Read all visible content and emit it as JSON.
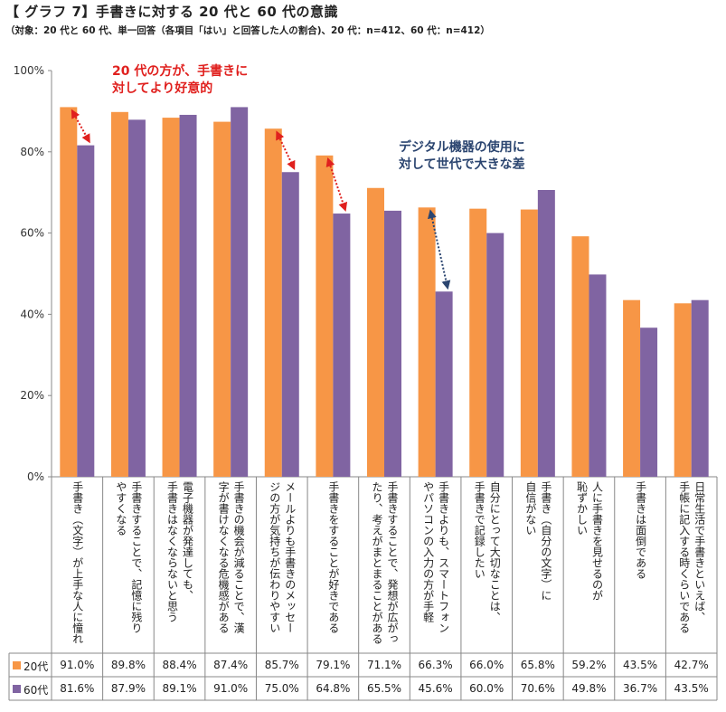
{
  "title": "【 グラフ 7】手書きに対する 20 代と 60 代の意識",
  "subtitle": "（対象：20 代と 60 代、単一回答（各項目「はい」と回答した人の割合)、20 代：n=412、60 代：n=412）",
  "annotations": {
    "red": [
      "20 代の方が、手書きに",
      "対してより好意的"
    ],
    "blue": [
      "デジタル機器の使用に",
      "対して世代で大きな差"
    ]
  },
  "colors": {
    "20代": "#f79646",
    "60代": "#8064a2",
    "red": "#e0201e",
    "blue": "#2b4570"
  },
  "chart_data": {
    "type": "bar",
    "ylim": [
      0,
      100
    ],
    "yticks": [
      "0%",
      "20%",
      "40%",
      "60%",
      "80%",
      "100%"
    ],
    "categories": [
      [
        "手書き（文字）が上手な人に憧れる"
      ],
      [
        "手書きすることで、記憶に残り",
        "やすくなる"
      ],
      [
        "電子機器が発達しても、",
        "手書きはなくならないと思う"
      ],
      [
        "手書きの機会が減ることで、漢",
        "字が書けなくなる危機感がある"
      ],
      [
        "メールよりも手書きのメッセー",
        "ジの方が気持ちが伝わりやすい"
      ],
      [
        "手書きをすることが好きである"
      ],
      [
        "手書きすることで、発想が広がっ",
        "たり、考えがまとまることがある"
      ],
      [
        "手書きよりも、スマートフォン",
        "やパソコンの入力の方が手軽"
      ],
      [
        "自分にとって大切なことは、",
        "手書きで記録したい"
      ],
      [
        "手書き（自分の文字）に",
        "自信がない"
      ],
      [
        "人に手書きを見せるのが",
        "恥ずかしい"
      ],
      [
        "手書きは面倒である"
      ],
      [
        "日常生活で手書きといえば、",
        "手帳に記入する時くらいである"
      ]
    ],
    "series": [
      {
        "name": "20代",
        "values": [
          91.0,
          89.8,
          88.4,
          87.4,
          85.7,
          79.1,
          71.1,
          66.3,
          66.0,
          65.8,
          59.2,
          43.5,
          42.7
        ],
        "labels": [
          "91.0%",
          "89.8%",
          "88.4%",
          "87.4%",
          "85.7%",
          "79.1%",
          "71.1%",
          "66.3%",
          "66.0%",
          "65.8%",
          "59.2%",
          "43.5%",
          "42.7%"
        ]
      },
      {
        "name": "60代",
        "values": [
          81.6,
          87.9,
          89.1,
          91.0,
          75.0,
          64.8,
          65.5,
          45.6,
          60.0,
          70.6,
          49.8,
          36.7,
          43.5
        ],
        "labels": [
          "81.6%",
          "87.9%",
          "89.1%",
          "91.0%",
          "75.0%",
          "64.8%",
          "65.5%",
          "45.6%",
          "60.0%",
          "70.6%",
          "49.8%",
          "36.7%",
          "43.5%"
        ]
      }
    ],
    "highlight_gaps": [
      {
        "category": 0,
        "style": "red"
      },
      {
        "category": 4,
        "style": "red"
      },
      {
        "category": 5,
        "style": "red"
      },
      {
        "category": 7,
        "style": "blue"
      }
    ]
  }
}
